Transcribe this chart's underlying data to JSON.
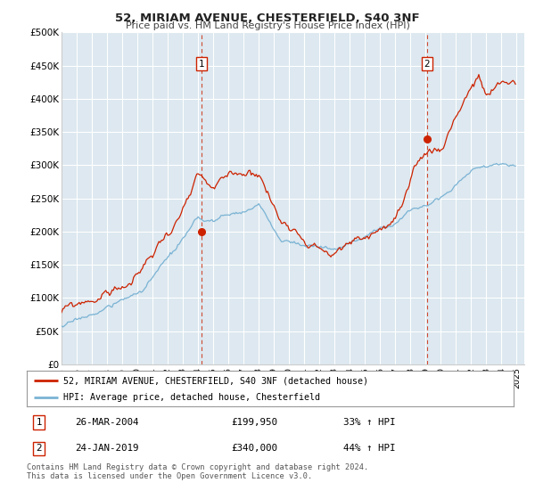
{
  "title": "52, MIRIAM AVENUE, CHESTERFIELD, S40 3NF",
  "subtitle": "Price paid vs. HM Land Registry's House Price Index (HPI)",
  "hpi_color": "#7ab3d4",
  "price_color": "#cc2200",
  "background_color": "#ffffff",
  "plot_bg_color": "#dde8f0",
  "grid_color": "#ffffff",
  "ylim": [
    0,
    500000
  ],
  "yticks": [
    0,
    50000,
    100000,
    150000,
    200000,
    250000,
    300000,
    350000,
    400000,
    450000,
    500000
  ],
  "ytick_labels": [
    "£0",
    "£50K",
    "£100K",
    "£150K",
    "£200K",
    "£250K",
    "£300K",
    "£350K",
    "£400K",
    "£450K",
    "£500K"
  ],
  "xlim_start": 1995.0,
  "xlim_end": 2025.5,
  "xticks": [
    1995,
    1996,
    1997,
    1998,
    1999,
    2000,
    2001,
    2002,
    2003,
    2004,
    2005,
    2006,
    2007,
    2008,
    2009,
    2010,
    2011,
    2012,
    2013,
    2014,
    2015,
    2016,
    2017,
    2018,
    2019,
    2020,
    2021,
    2022,
    2023,
    2024,
    2025
  ],
  "sale1_x": 2004.23,
  "sale1_y": 199950,
  "sale1_label": "1",
  "sale1_date": "26-MAR-2004",
  "sale1_price": "£199,950",
  "sale1_hpi": "33% ↑ HPI",
  "sale2_x": 2019.07,
  "sale2_y": 340000,
  "sale2_label": "2",
  "sale2_date": "24-JAN-2019",
  "sale2_price": "£340,000",
  "sale2_hpi": "44% ↑ HPI",
  "legend_line1": "52, MIRIAM AVENUE, CHESTERFIELD, S40 3NF (detached house)",
  "legend_line2": "HPI: Average price, detached house, Chesterfield",
  "footer": "Contains HM Land Registry data © Crown copyright and database right 2024.\nThis data is licensed under the Open Government Licence v3.0."
}
